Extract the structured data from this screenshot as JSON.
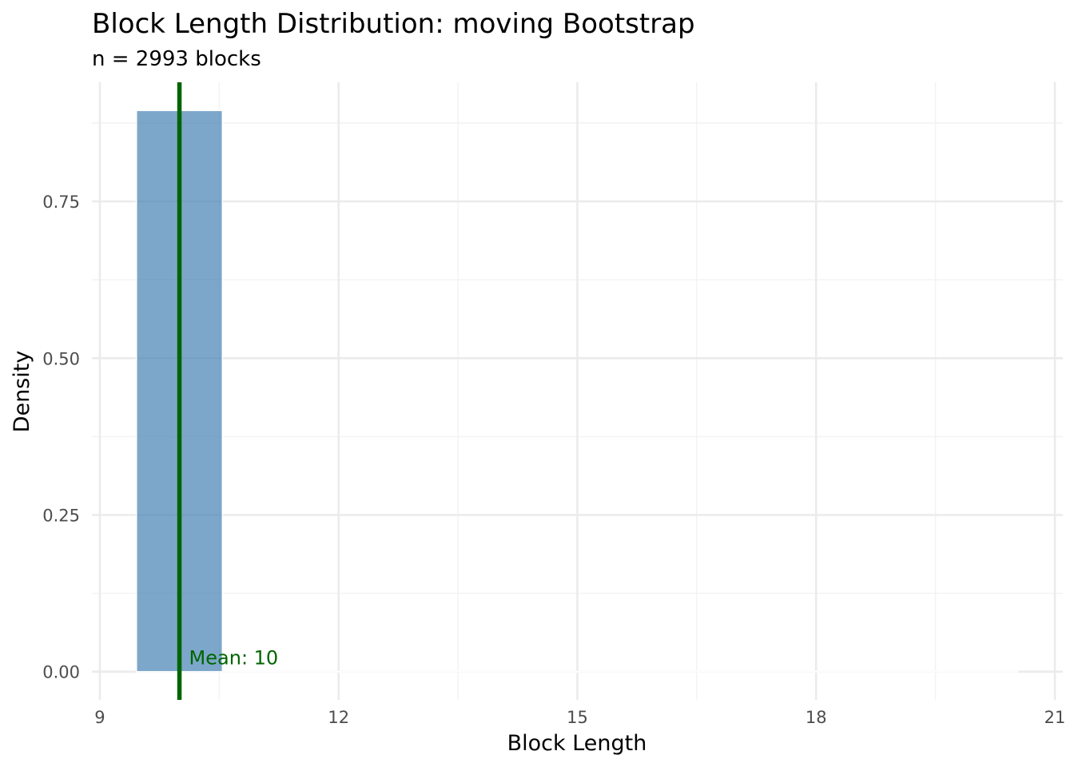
{
  "chart_data": {
    "type": "histogram",
    "title": "Block Length Distribution: moving Bootstrap",
    "subtitle": "n = 2993 blocks",
    "xlabel": "Block Length",
    "ylabel": "Density",
    "xlim": [
      8.9,
      21.1
    ],
    "ylim": [
      -0.045,
      0.94
    ],
    "x_ticks": [
      9,
      12,
      15,
      18,
      21
    ],
    "x_tick_labels": [
      "9",
      "12",
      "15",
      "18",
      "21"
    ],
    "y_ticks": [
      0.0,
      0.25,
      0.5,
      0.75
    ],
    "y_tick_labels": [
      "0.00",
      "0.25",
      "0.50",
      "0.75"
    ],
    "bins": [
      {
        "x0": 9.46,
        "x1": 10.54,
        "density": 0.895
      }
    ],
    "baseline_x_range": [
      9.46,
      20.54
    ],
    "mean_line": {
      "x": 10.0,
      "label": "Mean: 10",
      "color": "#006400"
    },
    "bar_color": "#4682b4",
    "grid": true,
    "legend": "none"
  }
}
